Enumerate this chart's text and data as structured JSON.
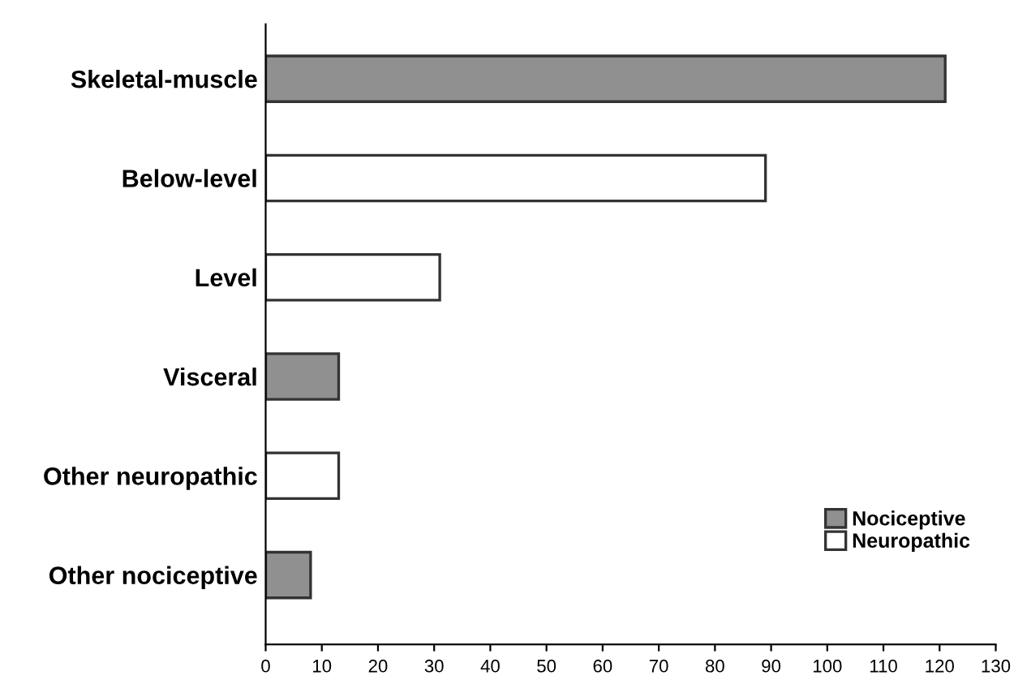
{
  "chart_data": {
    "type": "bar",
    "orientation": "horizontal",
    "categories": [
      "Skeletal-muscle",
      "Below-level",
      "Level",
      "Visceral",
      "Other neuropathic",
      "Other nociceptive"
    ],
    "series": [
      {
        "name": "Nociceptive",
        "color": "#909090",
        "values": [
          121,
          null,
          null,
          13,
          null,
          8
        ]
      },
      {
        "name": "Neuropathic",
        "color": "#ffffff",
        "values": [
          null,
          89,
          31,
          null,
          13,
          null
        ]
      }
    ],
    "xlim": [
      0,
      130
    ],
    "xticks": [
      0,
      10,
      20,
      30,
      40,
      50,
      60,
      70,
      80,
      90,
      100,
      110,
      120,
      130
    ],
    "grid": false,
    "legend": "bottom right"
  }
}
